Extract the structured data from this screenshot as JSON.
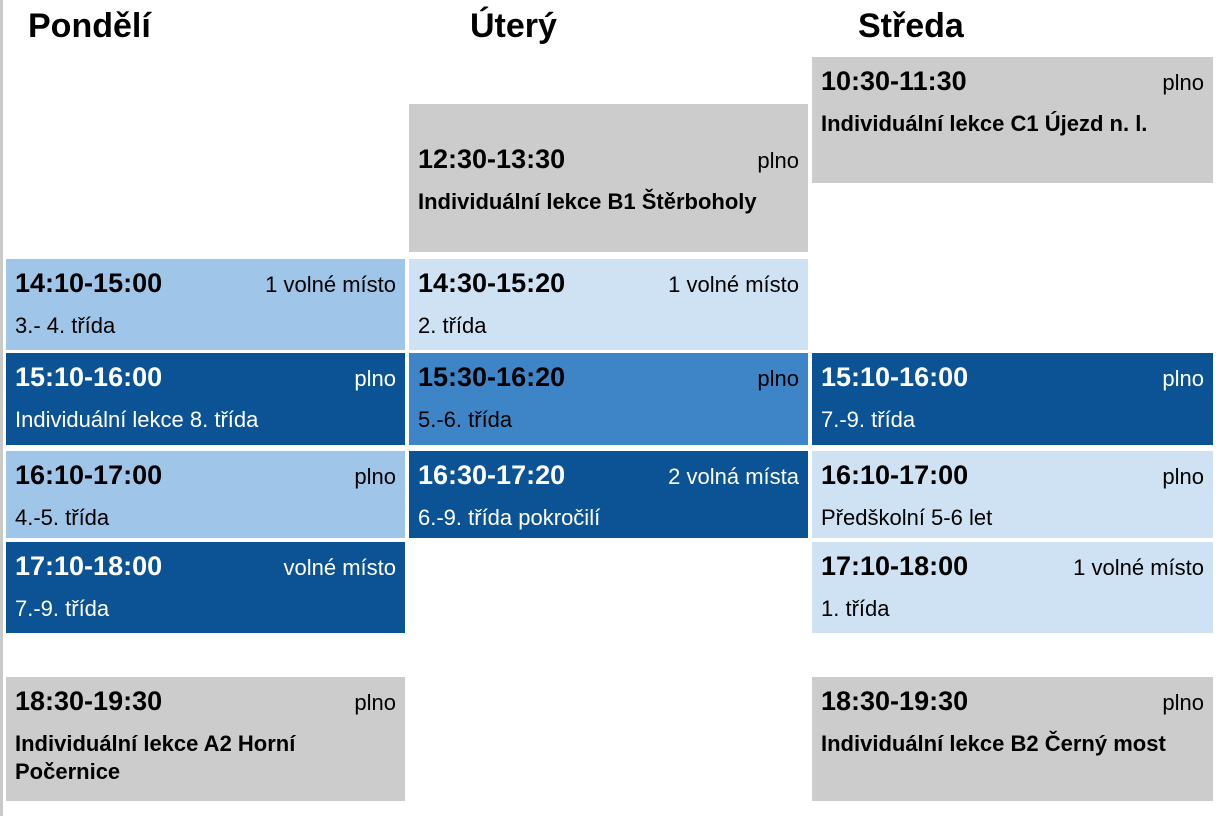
{
  "colors": {
    "gray": "#cccccc",
    "blue_lighter": "#cfe2f3",
    "blue_light": "#9fc5e8",
    "blue_medium": "#3d85c6",
    "blue_dark": "#0b5394"
  },
  "days": [
    {
      "name": "Pondělí",
      "events": [
        {
          "time": "14:10-15:00",
          "status": "1 volné místo",
          "title": "3.- 4. třída"
        },
        {
          "time": "15:10-16:00",
          "status": "plno",
          "title": "Individuální lekce 8. třída"
        },
        {
          "time": "16:10-17:00",
          "status": "plno",
          "title": "4.-5. třída"
        },
        {
          "time": "17:10-18:00",
          "status": "volné místo",
          "title": "7.-9. třída"
        },
        {
          "time": "18:30-19:30",
          "status": "plno",
          "title": "Individuální lekce A2 Horní Počernice"
        }
      ]
    },
    {
      "name": "Úterý",
      "events": [
        {
          "time": "12:30-13:30",
          "status": "plno",
          "title": "Individuální lekce B1 Štěrboholy"
        },
        {
          "time": "14:30-15:20",
          "status": "1 volné místo",
          "title": "2. třída"
        },
        {
          "time": "15:30-16:20",
          "status": "plno",
          "title": "5.-6. třída"
        },
        {
          "time": "16:30-17:20",
          "status": "2 volná místa",
          "title": "6.-9. třída pokročilí"
        }
      ]
    },
    {
      "name": "Středa",
      "events": [
        {
          "time": "10:30-11:30",
          "status": "plno",
          "title": "Individuální lekce C1 Újezd n. l."
        },
        {
          "time": "15:10-16:00",
          "status": "plno",
          "title": "7.-9. třída"
        },
        {
          "time": "16:10-17:00",
          "status": "plno",
          "title": "Předškolní 5-6 let"
        },
        {
          "time": "17:10-18:00",
          "status": "1 volné místo",
          "title": "1. třída"
        },
        {
          "time": "18:30-19:30",
          "status": "plno",
          "title": "Individuální lekce B2 Černý most"
        }
      ]
    }
  ]
}
